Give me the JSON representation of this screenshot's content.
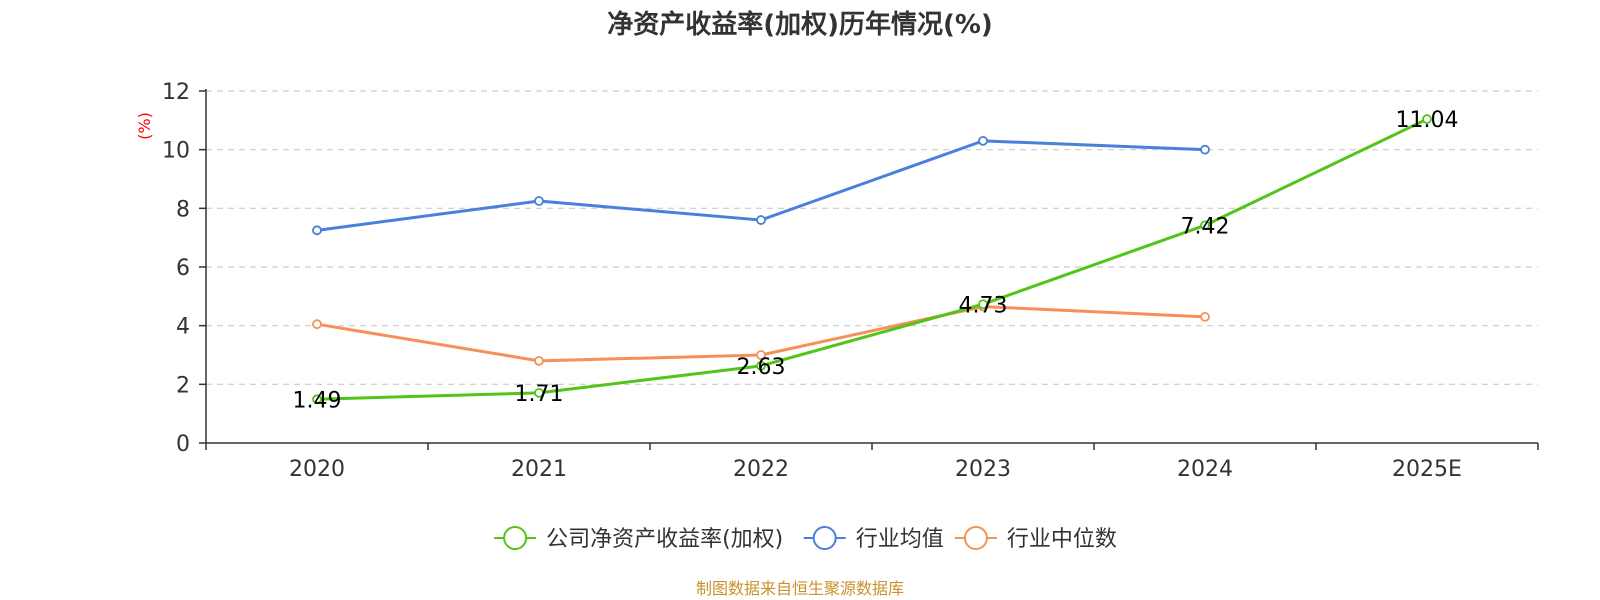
{
  "chart_data": {
    "type": "line",
    "title": "净资产收益率(加权)历年情况(%)",
    "ylabel": "(%)",
    "xlabel": "",
    "ylim": [
      0,
      12
    ],
    "yticks": [
      0,
      2,
      4,
      6,
      8,
      10,
      12
    ],
    "categories": [
      "2020",
      "2021",
      "2022",
      "2023",
      "2024",
      "2025E"
    ],
    "series": [
      {
        "name": "公司净资产收益率(加权)",
        "color": "#52c41a",
        "values": [
          1.49,
          1.71,
          2.63,
          4.73,
          7.42,
          11.04
        ],
        "labels": [
          "1.49",
          "1.71",
          "2.63",
          "4.73",
          "7.42",
          "11.04"
        ]
      },
      {
        "name": "行业均值",
        "color": "#4a7fdb",
        "values": [
          7.25,
          8.25,
          7.6,
          10.3,
          10.0,
          null
        ]
      },
      {
        "name": "行业中位数",
        "color": "#f59058",
        "values": [
          4.05,
          2.8,
          3.0,
          4.65,
          4.3,
          null
        ]
      }
    ],
    "grid": true,
    "legend_position": "bottom"
  },
  "colors": {
    "unit_label": "#ff0000",
    "source": "#c8922a"
  },
  "source": "制图数据来自恒生聚源数据库"
}
